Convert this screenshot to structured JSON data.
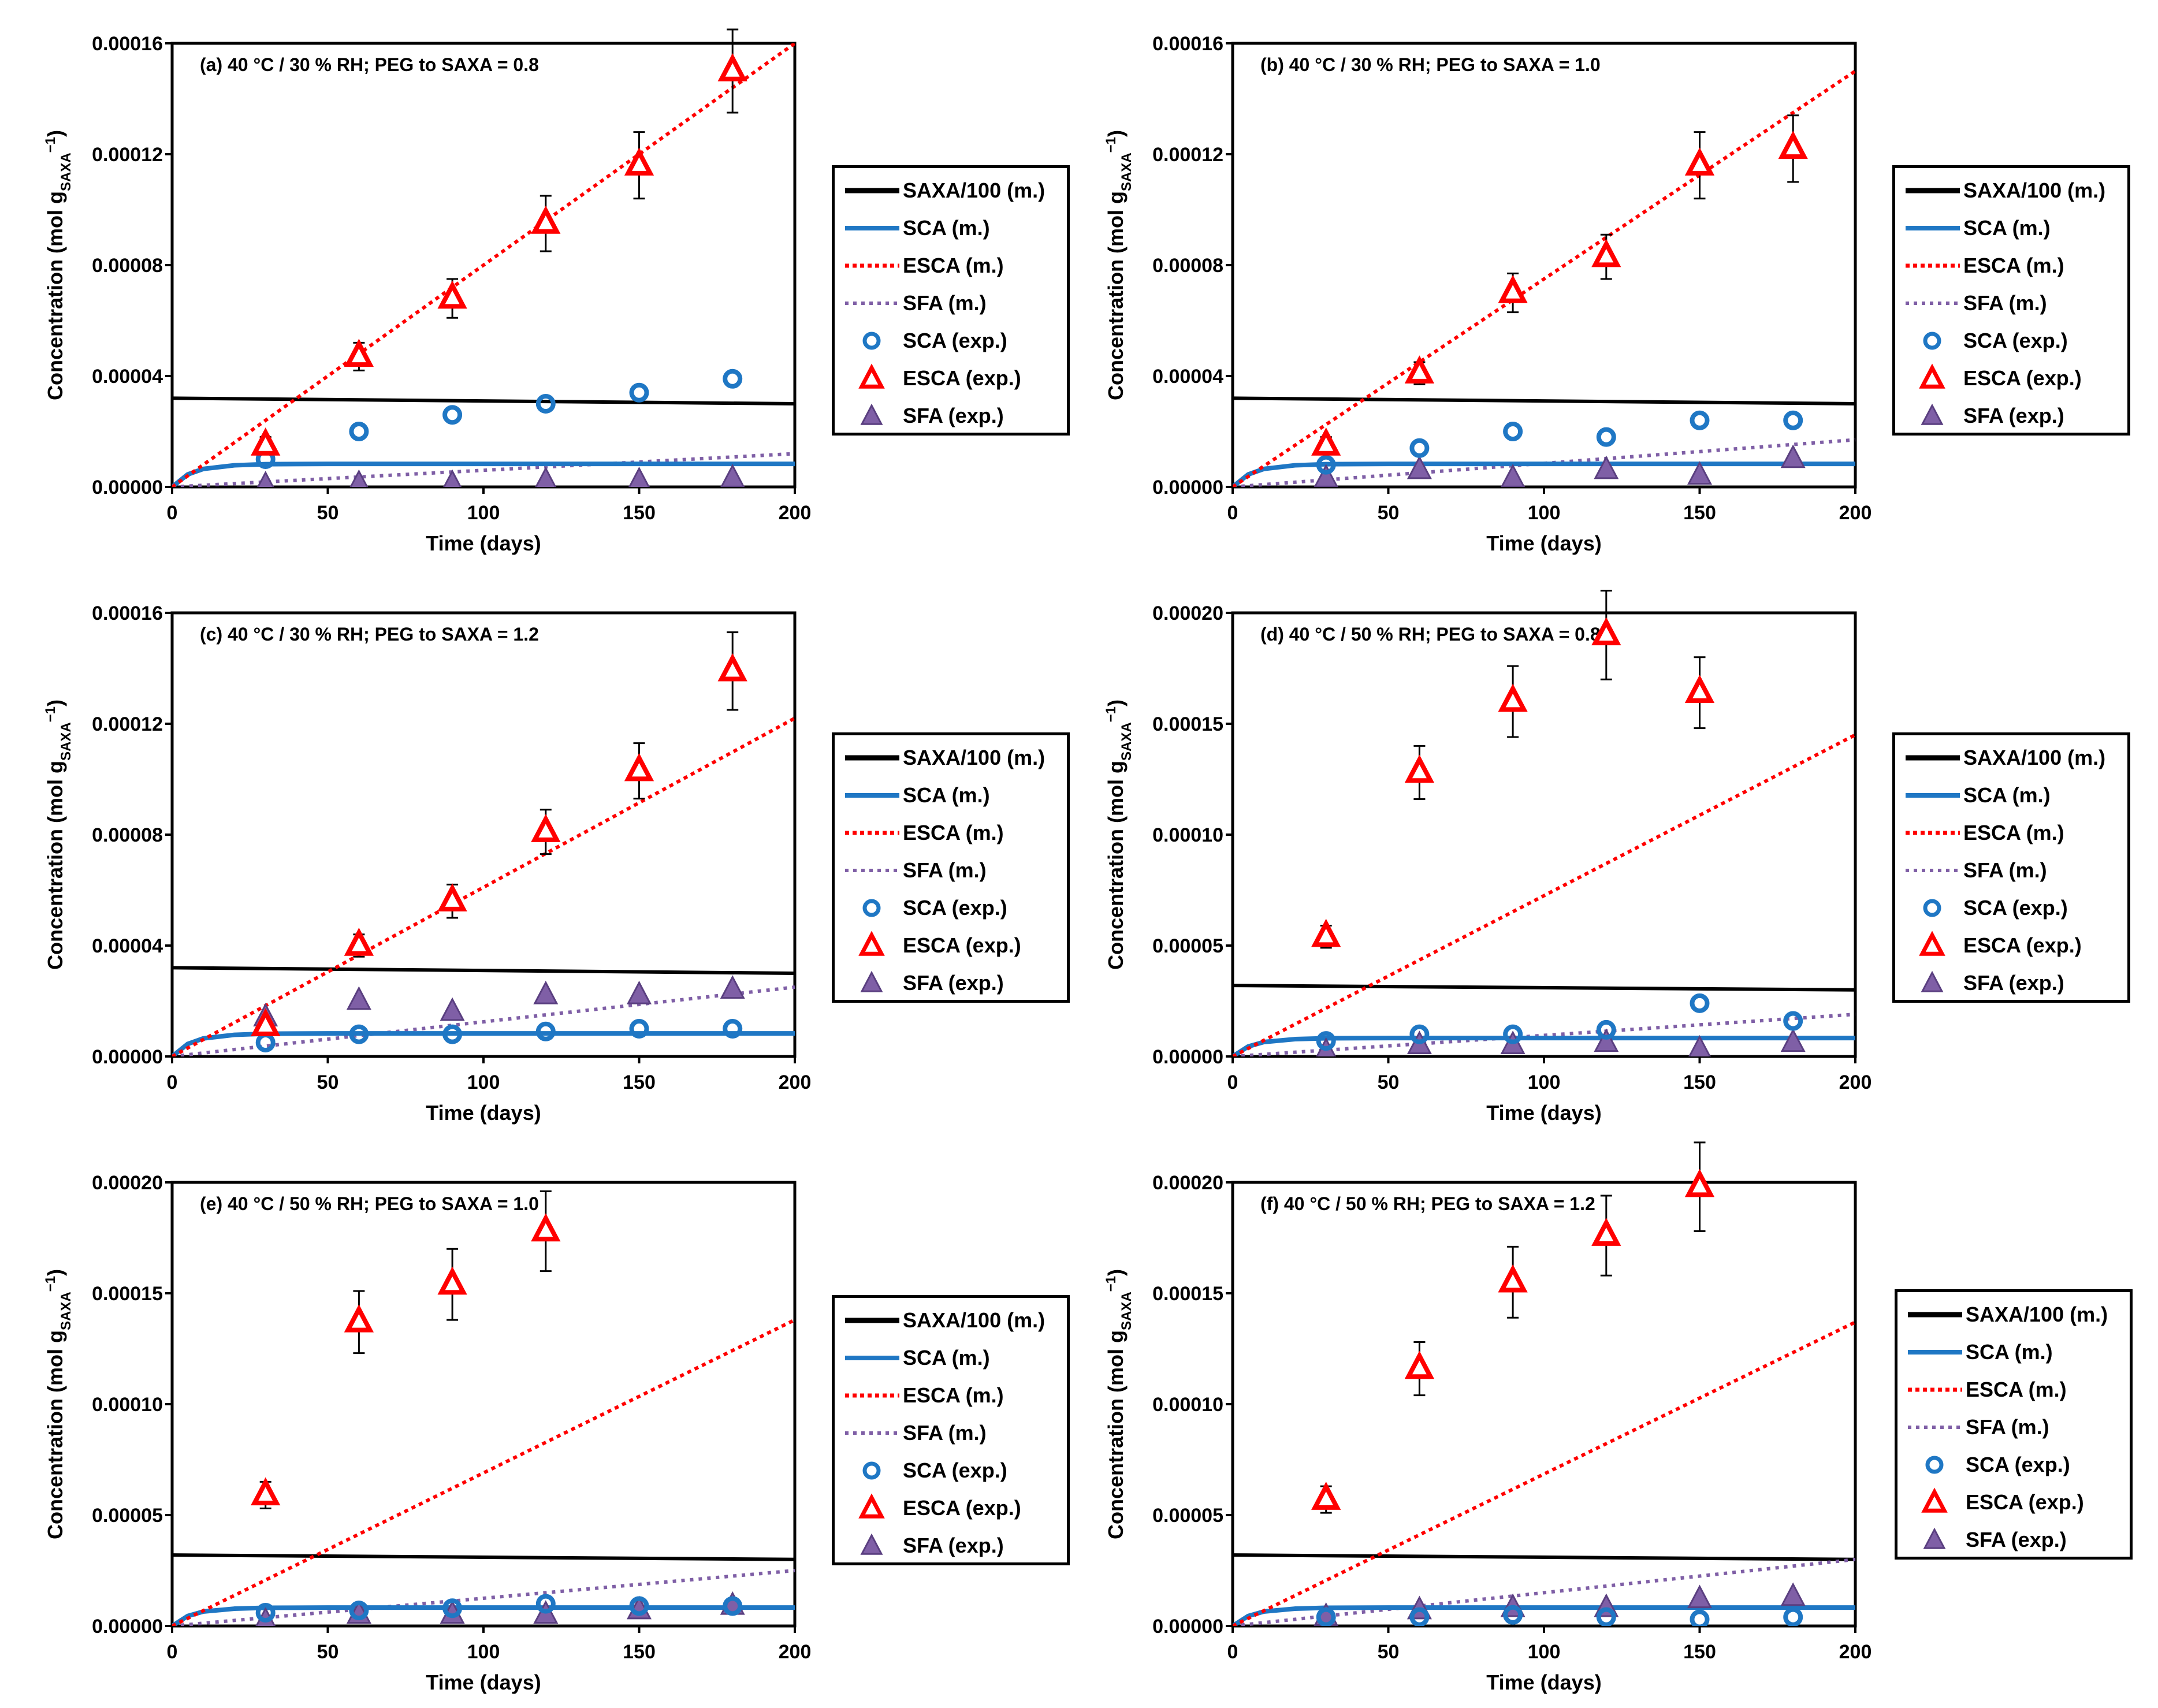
{
  "colors": {
    "saxa": "#000000",
    "sca": "#1f77c4",
    "esca": "#ff0000",
    "sfa": "#7f5fa6"
  },
  "legend_labels": [
    "SAXA/100 (m.)",
    "SCA (m.)",
    "ESCA (m.)",
    "SFA (m.)",
    "SCA (exp.)",
    "ESCA (exp.)",
    "SFA (exp.)"
  ],
  "chart_data": [
    {
      "type": "scatter",
      "title": "(a)  40 °C / 30 % RH; PEG to SAXA = 0.8",
      "xlabel": "Time (days)",
      "ylabel": "Concentration (mol g",
      "ylabel_sub": "SAXA",
      "ylabel_sup": "−1",
      "ylabel_close": ")",
      "xlim": [
        0,
        200
      ],
      "ylim": [
        0,
        0.00016
      ],
      "xticks": [
        0,
        50,
        100,
        150,
        200
      ],
      "xtick_labels": [
        "0",
        "50",
        "100",
        "150",
        "200"
      ],
      "yticks": [
        0,
        4e-05,
        8e-05,
        0.00012,
        0.00016
      ],
      "ytick_labels": [
        "0.00000",
        "0.00004",
        "0.00008",
        "0.00012",
        "0.00016"
      ],
      "model": {
        "SAXA/100": {
          "x": [
            0,
            200
          ],
          "y": [
            3.2e-05,
            3e-05
          ]
        },
        "SCA": {
          "x": [
            0,
            5,
            10,
            20,
            30,
            50,
            100,
            200
          ],
          "y": [
            0,
            4.5e-06,
            6.5e-06,
            7.8e-06,
            8.2e-06,
            8.3e-06,
            8.3e-06,
            8.3e-06
          ]
        },
        "ESCA": {
          "x": [
            0,
            200
          ],
          "y": [
            0,
            0.00016
          ]
        },
        "SFA": {
          "x": [
            0,
            200
          ],
          "y": [
            0,
            1.2e-05
          ]
        }
      },
      "exp": {
        "x": [
          30,
          60,
          90,
          120,
          150,
          180
        ],
        "SCA": [
          1e-05,
          2e-05,
          2.6e-05,
          3e-05,
          3.4e-05,
          3.9e-05
        ],
        "ESCA": [
          1.5e-05,
          4.7e-05,
          6.8e-05,
          9.5e-05,
          0.000116,
          0.00015
        ],
        "ESCA_err": [
          3e-06,
          5e-06,
          7e-06,
          1e-05,
          1.2e-05,
          1.5e-05
        ],
        "SFA": [
          5e-07,
          1e-06,
          1e-06,
          2e-06,
          2e-06,
          3e-06
        ]
      }
    },
    {
      "type": "scatter",
      "title": "(b)  40 °C / 30 % RH; PEG to SAXA = 1.0",
      "xlabel": "Time (days)",
      "ylabel": "Concentration (mol g",
      "ylabel_sub": "SAXA",
      "ylabel_sup": "−1",
      "ylabel_close": ")",
      "xlim": [
        0,
        200
      ],
      "ylim": [
        0,
        0.00016
      ],
      "xticks": [
        0,
        50,
        100,
        150,
        200
      ],
      "xtick_labels": [
        "0",
        "50",
        "100",
        "150",
        "200"
      ],
      "yticks": [
        0,
        4e-05,
        8e-05,
        0.00012,
        0.00016
      ],
      "ytick_labels": [
        "0.00000",
        "0.00004",
        "0.00008",
        "0.00012",
        "0.00016"
      ],
      "model": {
        "SAXA/100": {
          "x": [
            0,
            200
          ],
          "y": [
            3.2e-05,
            3e-05
          ]
        },
        "SCA": {
          "x": [
            0,
            5,
            10,
            20,
            30,
            50,
            100,
            200
          ],
          "y": [
            0,
            4.5e-06,
            6.5e-06,
            7.8e-06,
            8.2e-06,
            8.3e-06,
            8.3e-06,
            8.3e-06
          ]
        },
        "ESCA": {
          "x": [
            0,
            200
          ],
          "y": [
            0,
            0.00015
          ]
        },
        "SFA": {
          "x": [
            0,
            200
          ],
          "y": [
            0,
            1.7e-05
          ]
        }
      },
      "exp": {
        "x": [
          30,
          60,
          90,
          120,
          150,
          180
        ],
        "SCA": [
          8e-06,
          1.4e-05,
          2e-05,
          1.8e-05,
          2.4e-05,
          2.4e-05
        ],
        "ESCA": [
          1.5e-05,
          4.1e-05,
          7e-05,
          8.3e-05,
          0.000116,
          0.000122
        ],
        "ESCA_err": [
          3e-06,
          4e-06,
          7e-06,
          8e-06,
          1.2e-05,
          1.2e-05
        ],
        "SFA": [
          3e-06,
          6e-06,
          3e-06,
          6e-06,
          4e-06,
          1e-05
        ]
      }
    },
    {
      "type": "scatter",
      "title": "(c)  40 °C / 30 % RH; PEG to SAXA = 1.2",
      "xlabel": "Time (days)",
      "ylabel": "Concentration (mol g",
      "ylabel_sub": "SAXA",
      "ylabel_sup": "−1",
      "ylabel_close": ")",
      "xlim": [
        0,
        200
      ],
      "ylim": [
        0,
        0.00016
      ],
      "xticks": [
        0,
        50,
        100,
        150,
        200
      ],
      "xtick_labels": [
        "0",
        "50",
        "100",
        "150",
        "200"
      ],
      "yticks": [
        0,
        4e-05,
        8e-05,
        0.00012,
        0.00016
      ],
      "ytick_labels": [
        "0.00000",
        "0.00004",
        "0.00008",
        "0.00012",
        "0.00016"
      ],
      "model": {
        "SAXA/100": {
          "x": [
            0,
            200
          ],
          "y": [
            3.2e-05,
            3e-05
          ]
        },
        "SCA": {
          "x": [
            0,
            5,
            10,
            20,
            30,
            50,
            100,
            200
          ],
          "y": [
            0,
            4.5e-06,
            6.5e-06,
            7.8e-06,
            8.2e-06,
            8.3e-06,
            8.3e-06,
            8.3e-06
          ]
        },
        "ESCA": {
          "x": [
            0,
            200
          ],
          "y": [
            0,
            0.000122
          ]
        },
        "SFA": {
          "x": [
            0,
            200
          ],
          "y": [
            0,
            2.5e-05
          ]
        }
      },
      "exp": {
        "x": [
          30,
          60,
          90,
          120,
          150,
          180
        ],
        "SCA": [
          5e-06,
          8e-06,
          8e-06,
          9e-06,
          1e-05,
          1e-05
        ],
        "ESCA": [
          1.1e-05,
          4e-05,
          5.6e-05,
          8.1e-05,
          0.000103,
          0.000139
        ],
        "ESCA_err": [
          2e-06,
          4e-06,
          6e-06,
          8e-06,
          1e-05,
          1.4e-05
        ],
        "SFA": [
          1.4e-05,
          2e-05,
          1.6e-05,
          2.2e-05,
          2.2e-05,
          2.4e-05
        ]
      }
    },
    {
      "type": "scatter",
      "title": "(d)  40 °C / 50 % RH; PEG to SAXA = 0.8",
      "xlabel": "Time (days)",
      "ylabel": "Concentration (mol g",
      "ylabel_sub": "SAXA",
      "ylabel_sup": "−1",
      "ylabel_close": ")",
      "xlim": [
        0,
        200
      ],
      "ylim": [
        0,
        0.0002
      ],
      "xticks": [
        0,
        50,
        100,
        150,
        200
      ],
      "xtick_labels": [
        "0",
        "50",
        "100",
        "150",
        "200"
      ],
      "yticks": [
        0,
        5e-05,
        0.0001,
        0.00015,
        0.0002
      ],
      "ytick_labels": [
        "0.00000",
        "0.00005",
        "0.00010",
        "0.00015",
        "0.00020"
      ],
      "model": {
        "SAXA/100": {
          "x": [
            0,
            200
          ],
          "y": [
            3.2e-05,
            3e-05
          ]
        },
        "SCA": {
          "x": [
            0,
            5,
            10,
            20,
            30,
            50,
            100,
            200
          ],
          "y": [
            0,
            4.5e-06,
            6.5e-06,
            7.8e-06,
            8.2e-06,
            8.3e-06,
            8.3e-06,
            8.3e-06
          ]
        },
        "ESCA": {
          "x": [
            0,
            200
          ],
          "y": [
            0,
            0.000145
          ]
        },
        "SFA": {
          "x": [
            0,
            200
          ],
          "y": [
            0,
            1.9e-05
          ]
        }
      },
      "exp": {
        "x": [
          30,
          60,
          90,
          120,
          150,
          180
        ],
        "SCA": [
          7e-06,
          1e-05,
          1e-05,
          1.2e-05,
          2.4e-05,
          1.6e-05
        ],
        "ESCA": [
          5.4e-05,
          0.000128,
          0.00016,
          0.00019,
          0.000164,
          null
        ],
        "ESCA_err": [
          5e-06,
          1.2e-05,
          1.6e-05,
          2e-05,
          1.6e-05,
          null
        ],
        "SFA": [
          2e-06,
          5e-06,
          5e-06,
          6e-06,
          3e-06,
          6e-06
        ]
      }
    },
    {
      "type": "scatter",
      "title": "(e)  40 °C / 50 % RH; PEG to SAXA = 1.0",
      "xlabel": "Time (days)",
      "ylabel": "Concentration (mol g",
      "ylabel_sub": "SAXA",
      "ylabel_sup": "−1",
      "ylabel_close": ")",
      "xlim": [
        0,
        200
      ],
      "ylim": [
        0,
        0.0002
      ],
      "xticks": [
        0,
        50,
        100,
        150,
        200
      ],
      "xtick_labels": [
        "0",
        "50",
        "100",
        "150",
        "200"
      ],
      "yticks": [
        0,
        5e-05,
        0.0001,
        0.00015,
        0.0002
      ],
      "ytick_labels": [
        "0.00000",
        "0.00005",
        "0.00010",
        "0.00015",
        "0.00020"
      ],
      "model": {
        "SAXA/100": {
          "x": [
            0,
            200
          ],
          "y": [
            3.2e-05,
            3e-05
          ]
        },
        "SCA": {
          "x": [
            0,
            5,
            10,
            20,
            30,
            50,
            100,
            200
          ],
          "y": [
            0,
            4.5e-06,
            6.5e-06,
            7.8e-06,
            8.2e-06,
            8.3e-06,
            8.3e-06,
            8.3e-06
          ]
        },
        "ESCA": {
          "x": [
            0,
            200
          ],
          "y": [
            0,
            0.000138
          ]
        },
        "SFA": {
          "x": [
            0,
            200
          ],
          "y": [
            0,
            2.5e-05
          ]
        }
      },
      "exp": {
        "x": [
          30,
          60,
          90,
          120,
          150,
          180
        ],
        "SCA": [
          6e-06,
          7e-06,
          8e-06,
          1e-05,
          9e-06,
          9e-06
        ],
        "ESCA": [
          5.9e-05,
          0.000137,
          0.000154,
          0.000178,
          null,
          null
        ],
        "ESCA_err": [
          6e-06,
          1.4e-05,
          1.6e-05,
          1.8e-05,
          null,
          null
        ],
        "SFA": [
          2e-06,
          5e-06,
          5e-06,
          5e-06,
          7e-06,
          9e-06
        ]
      }
    },
    {
      "type": "scatter",
      "title": "(f)  40 °C / 50 % RH; PEG to SAXA = 1.2",
      "xlabel": "Time (days)",
      "ylabel": "Concentration (mol g",
      "ylabel_sub": "SAXA",
      "ylabel_sup": "−1",
      "ylabel_close": ")",
      "xlim": [
        0,
        200
      ],
      "ylim": [
        0,
        0.0002
      ],
      "xticks": [
        0,
        50,
        100,
        150,
        200
      ],
      "xtick_labels": [
        "0",
        "50",
        "100",
        "150",
        "200"
      ],
      "yticks": [
        0,
        5e-05,
        0.0001,
        0.00015,
        0.0002
      ],
      "ytick_labels": [
        "0.00000",
        "0.00005",
        "0.00010",
        "0.00015",
        "0.00020"
      ],
      "model": {
        "SAXA/100": {
          "x": [
            0,
            200
          ],
          "y": [
            3.2e-05,
            3e-05
          ]
        },
        "SCA": {
          "x": [
            0,
            5,
            10,
            20,
            30,
            50,
            100,
            200
          ],
          "y": [
            0,
            4.5e-06,
            6.5e-06,
            7.8e-06,
            8.2e-06,
            8.3e-06,
            8.3e-06,
            8.3e-06
          ]
        },
        "ESCA": {
          "x": [
            0,
            200
          ],
          "y": [
            0,
            0.000137
          ]
        },
        "SFA": {
          "x": [
            0,
            200
          ],
          "y": [
            0,
            3e-05
          ]
        }
      },
      "exp": {
        "x": [
          30,
          60,
          90,
          120,
          150,
          180
        ],
        "SCA": [
          4e-06,
          4e-06,
          5e-06,
          4e-06,
          3e-06,
          4e-06
        ],
        "ESCA": [
          5.7e-05,
          0.000116,
          0.000155,
          0.000176,
          0.000198,
          null
        ],
        "ESCA_err": [
          6e-06,
          1.2e-05,
          1.6e-05,
          1.8e-05,
          2e-05,
          null
        ],
        "SFA": [
          4e-06,
          7e-06,
          8e-06,
          8e-06,
          1.2e-05,
          1.3e-05
        ]
      }
    }
  ]
}
